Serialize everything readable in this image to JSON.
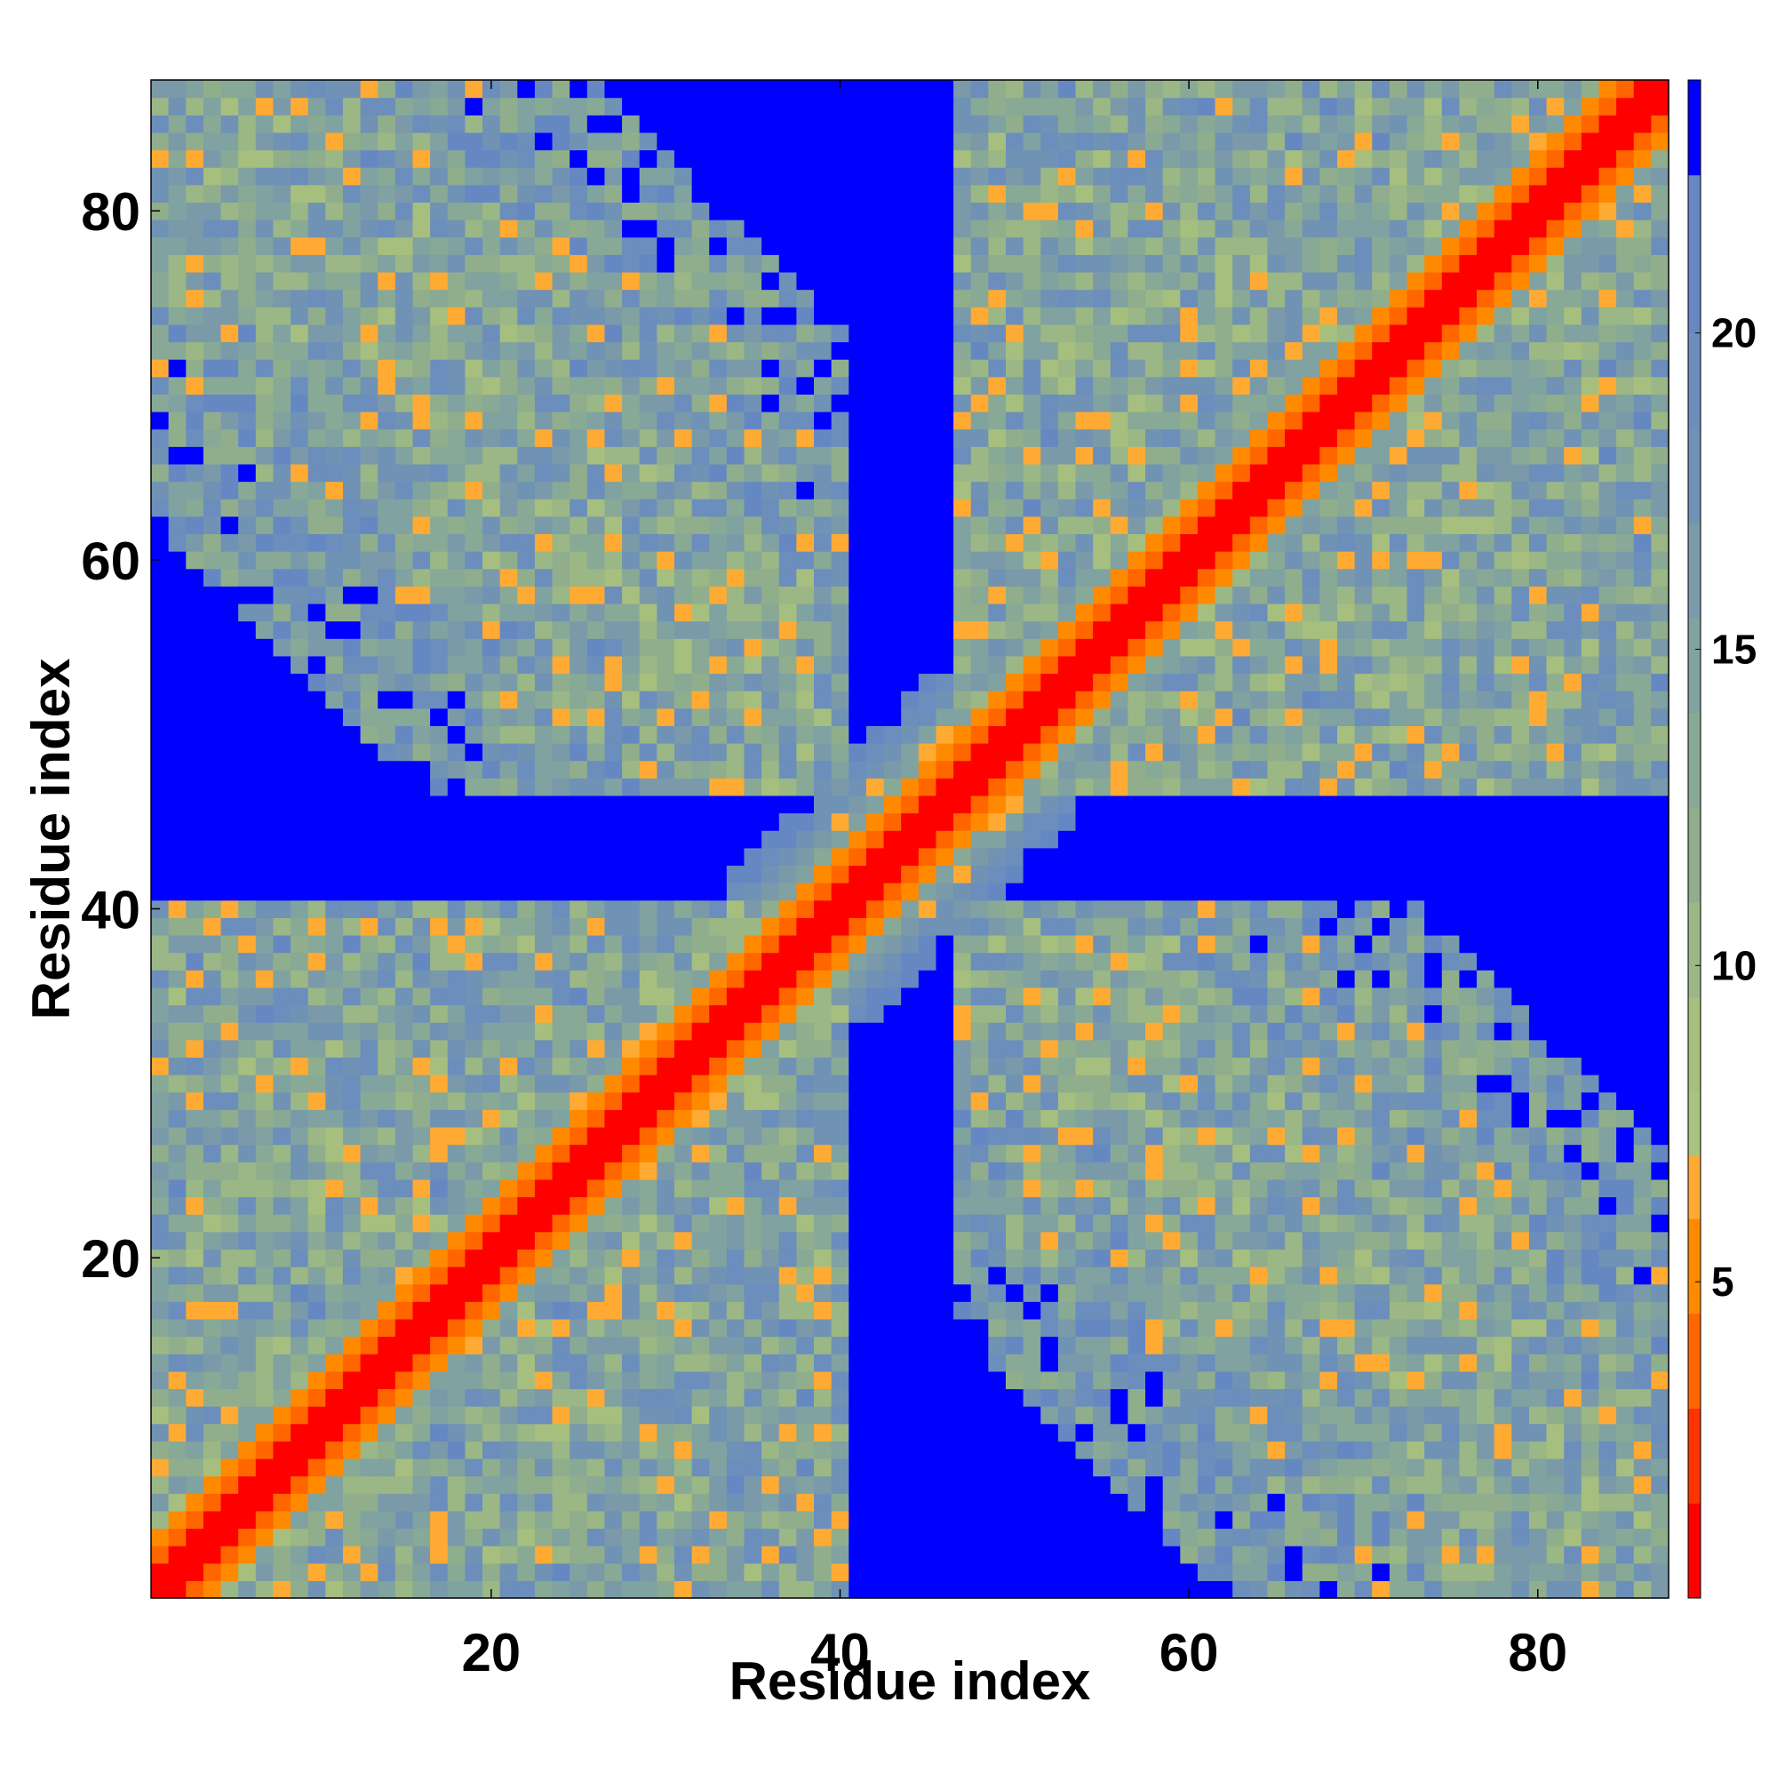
{
  "chart_data": {
    "type": "heatmap",
    "title": "",
    "xlabel": "Residue index",
    "ylabel": "Residue index",
    "n_residues": 87,
    "xlim": [
      1,
      87
    ],
    "ylim": [
      1,
      87
    ],
    "xticks": [
      20,
      40,
      60,
      80
    ],
    "yticks": [
      20,
      40,
      60,
      80
    ],
    "colorbar": {
      "range": [
        0,
        24
      ],
      "ticks": [
        5,
        10,
        15,
        20
      ],
      "bins": [
        {
          "max": 1.5,
          "color": "#ff0000"
        },
        {
          "max": 3.0,
          "color": "#ff3300"
        },
        {
          "max": 4.5,
          "color": "#ff6600"
        },
        {
          "max": 6.0,
          "color": "#ff8a00"
        },
        {
          "max": 7.0,
          "color": "#ffaa33"
        },
        {
          "max": 8.0,
          "color": "#a8c47e"
        },
        {
          "max": 9.5,
          "color": "#a6bf7f"
        },
        {
          "max": 11.0,
          "color": "#9ab785"
        },
        {
          "max": 12.5,
          "color": "#90ae8c"
        },
        {
          "max": 14.0,
          "color": "#88a996"
        },
        {
          "max": 15.5,
          "color": "#80a2a0"
        },
        {
          "max": 17.0,
          "color": "#7a9aaa"
        },
        {
          "max": 18.5,
          "color": "#7092b4"
        },
        {
          "max": 20.0,
          "color": "#6b8ebc"
        },
        {
          "max": 22.5,
          "color": "#6688c2"
        },
        {
          "max": 24.0,
          "color": "#0000ff"
        }
      ]
    },
    "structure_note_values": {
      "block_a": [
        1,
        40
      ],
      "block_b": [
        47,
        87
      ],
      "far_value": 23.5
    }
  }
}
